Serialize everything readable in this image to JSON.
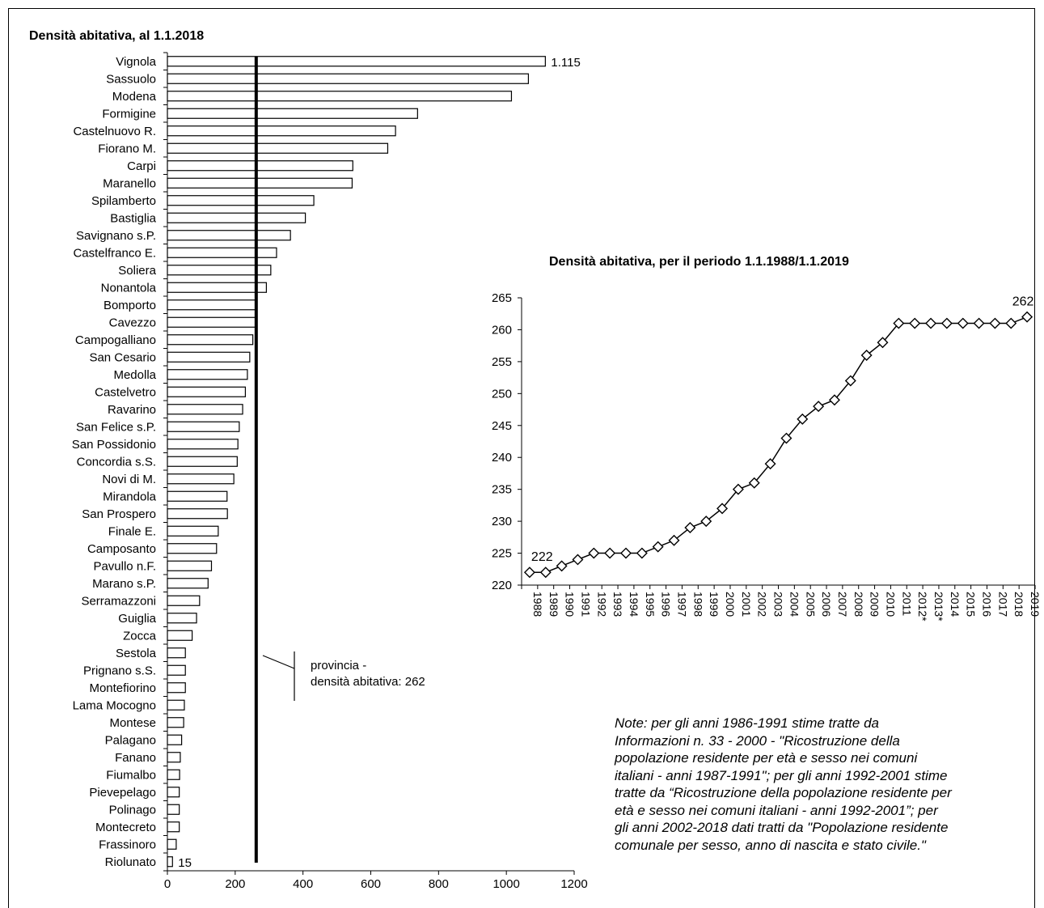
{
  "chart_data": [
    {
      "type": "bar",
      "orientation": "horizontal",
      "title": "Densità abitativa, al 1.1.2018",
      "categories": [
        "Vignola",
        "Sassuolo",
        "Modena",
        "Formigine",
        "Castelnuovo R.",
        "Fiorano M.",
        "Carpi",
        "Maranello",
        "Spilamberto",
        "Bastiglia",
        "Savignano s.P.",
        "Castelfranco E.",
        "Soliera",
        "Nonantola",
        "Bomporto",
        "Cavezzo",
        "Campogalliano",
        "San Cesario",
        "Medolla",
        "Castelvetro",
        "Ravarino",
        "San Felice s.P.",
        "San Possidonio",
        "Concordia s.S.",
        "Novi di M.",
        "Mirandola",
        "San Prospero",
        "Finale E.",
        "Camposanto",
        "Pavullo n.F.",
        "Marano s.P.",
        "Serramazzoni",
        "Guiglia",
        "Zocca",
        "Sestola",
        "Prignano s.S.",
        "Montefiorino",
        "Lama Mocogno",
        "Montese",
        "Palagano",
        "Fanano",
        "Fiumalbo",
        "Pievepelago",
        "Polinago",
        "Montecreto",
        "Frassinoro",
        "Riolunato"
      ],
      "values": [
        1115,
        1065,
        1015,
        738,
        673,
        650,
        547,
        545,
        432,
        407,
        363,
        322,
        305,
        292,
        263,
        262,
        252,
        243,
        236,
        230,
        222,
        212,
        208,
        206,
        196,
        176,
        177,
        150,
        145,
        130,
        120,
        95,
        86,
        73,
        53,
        53,
        53,
        50,
        48,
        42,
        38,
        36,
        35,
        35,
        35,
        26,
        15
      ],
      "data_labels": [
        {
          "category": "Vignola",
          "text": "1.115"
        },
        {
          "category": "Riolunato",
          "text": "15"
        }
      ],
      "xlim": [
        0,
        1200
      ],
      "xticks": [
        "0",
        "200",
        "400",
        "600",
        "800",
        "1000",
        "1200"
      ],
      "reference_line": {
        "value": 262,
        "label_line1": "provincia -",
        "label_line2": "densità abitativa: 262"
      },
      "bar_fill": "#ffffff",
      "bar_stroke": "#000000"
    },
    {
      "type": "line",
      "title": "Densità abitativa, per il periodo 1.1.1988/1.1.2019",
      "x": [
        "1988",
        "1989",
        "1990",
        "1991",
        "1992",
        "1993",
        "1994",
        "1995",
        "1996",
        "1997",
        "1998",
        "1999",
        "2000",
        "2001",
        "2002",
        "2003",
        "2004",
        "2005",
        "2006",
        "2007",
        "2008",
        "2009",
        "2010",
        "2011",
        "2012*",
        "2013*",
        "2014",
        "2015",
        "2016",
        "2017",
        "2018",
        "2019"
      ],
      "values": [
        222,
        222,
        223,
        224,
        225,
        225,
        225,
        225,
        226,
        227,
        229,
        230,
        232,
        235,
        236,
        239,
        243,
        246,
        248,
        249,
        252,
        256,
        258,
        261,
        261,
        261,
        261,
        261,
        261,
        261,
        261,
        262
      ],
      "data_labels": [
        {
          "x": "1988",
          "text": "222"
        },
        {
          "x": "2019",
          "text": "262"
        }
      ],
      "ylim": [
        220,
        265
      ],
      "yticks": [
        "220",
        "225",
        "230",
        "235",
        "240",
        "245",
        "250",
        "255",
        "260",
        "265"
      ],
      "marker": "diamond",
      "line_color": "#000000"
    }
  ],
  "note": "Note: per gli anni 1986-1991 stime tratte da\nInformazioni n. 33 - 2000 - \"Ricostruzione della\npopolazione residente per età e sesso nei comuni\nitaliani - anni 1987-1991\"; per gli anni 1992-2001 stime\ntratte da “Ricostruzione della popolazione residente per\netà e sesso nei comuni italiani - anni 1992-2001”; per\ngli anni 2002-2018 dati tratti da \"Popolazione residente\ncomunale per sesso, anno di nascita e stato civile.\""
}
